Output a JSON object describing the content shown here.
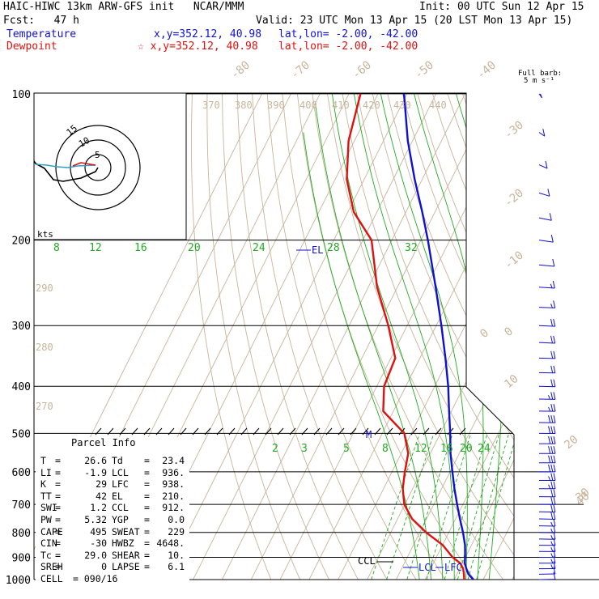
{
  "header": {
    "title": "HAIC-HIWC 13km ARW-GFS init",
    "org": "NCAR/MMM",
    "init": "Init: 00 UTC Sun 12 Apr 15",
    "fcst_label": "Fcst:",
    "fcst_value": "47 h",
    "valid": "Valid: 23 UTC Mon 13 Apr 15 (20 LST Mon 13 Apr 15)",
    "temp_label": "Temperature",
    "temp_xy": "x,y=352.12, 40.98",
    "temp_latlon": "lat,lon= -2.00, -42.00",
    "dew_label": "Dewpoint",
    "dew_star": "☆",
    "dew_xy": "x,y=352.12, 40.98",
    "dew_latlon": "lat,lon= -2.00, -42.00"
  },
  "barb_legend": {
    "line1": "Full barb:",
    "line2": "5 m s⁻¹"
  },
  "hodograph": {
    "units": "kts",
    "ring_labels": [
      "5",
      "10",
      "15"
    ]
  },
  "parcel_info": {
    "title": "Parcel Info",
    "rows": [
      [
        "T",
        "26.6",
        "Td",
        "23.4"
      ],
      [
        "LI",
        "-1.9",
        "LCL",
        "936."
      ],
      [
        "K",
        "29",
        "LFC",
        "938."
      ],
      [
        "TT",
        "42",
        "EL",
        "210."
      ],
      [
        "SWI",
        "1.2",
        "CCL",
        "912."
      ],
      [
        "PW",
        "5.32",
        "YGP",
        "0.0"
      ],
      [
        "CAPE",
        "495",
        "SWEAT",
        "229"
      ],
      [
        "CIN",
        "-30",
        "HWBZ",
        "4648."
      ],
      [
        "Tc",
        "29.0",
        "SHEAR",
        "10."
      ],
      [
        "SREH",
        "0",
        "LAPSE",
        "6.1"
      ]
    ],
    "cell_label": "CELL",
    "cell_value": "090/16"
  },
  "colors": {
    "temperature": "#1010d0",
    "dewpoint": "#e01010",
    "isotherm": "#c8b49a",
    "dry_adiabat": "#c8b49a",
    "moist_adiabat": "#22aa22",
    "mixing_ratio": "#22aa22",
    "isobar": "#000000",
    "wind_barb": "#1010d0"
  },
  "chart_data": {
    "type": "line",
    "subtype": "skew-t log-p",
    "pressure_levels": [
      "100",
      "200",
      "300",
      "400",
      "500",
      "600",
      "700",
      "800",
      "900",
      "1000"
    ],
    "isotherm_labels": [
      "-80",
      "-70",
      "-60",
      "-50",
      "-40",
      "-30",
      "-20",
      "-10",
      "0",
      "10",
      "20",
      "30",
      "40"
    ],
    "theta_labels": [
      "370",
      "380",
      "390",
      "400",
      "410",
      "420",
      "430",
      "440",
      "290",
      "280",
      "270"
    ],
    "moist_labels": [
      "8",
      "12",
      "16",
      "20",
      "24",
      "28",
      "32"
    ],
    "mixing_ratio_labels": [
      "2",
      "3",
      "5",
      "8",
      "12",
      "16",
      "20",
      "24"
    ],
    "level_labels": {
      "el": "EL",
      "m": "M",
      "ccl": "CCL",
      "lcl": "LCL",
      "lfc": "LFC"
    },
    "series": [
      {
        "name": "Temperature",
        "p": [
          1000,
          975,
          950,
          925,
          900,
          850,
          800,
          750,
          700,
          650,
          600,
          550,
          500,
          450,
          400,
          350,
          300,
          250,
          200,
          175,
          150,
          125,
          100
        ],
        "t": [
          26.6,
          24.0,
          22.3,
          20.8,
          19.9,
          17.8,
          14.9,
          11.5,
          8.0,
          4.4,
          0.8,
          -3.0,
          -6.6,
          -10.8,
          -15.4,
          -21.2,
          -28.2,
          -36.8,
          -47.6,
          -54.4,
          -62.6,
          -71.6,
          -81.0
        ]
      },
      {
        "name": "Dewpoint",
        "p": [
          1000,
          975,
          950,
          925,
          900,
          850,
          800,
          750,
          700,
          650,
          600,
          550,
          500,
          450,
          400,
          350,
          300,
          250,
          200,
          175,
          150,
          125,
          100
        ],
        "t": [
          23.4,
          22.4,
          21.2,
          19.2,
          15.6,
          10.2,
          2.2,
          -5.0,
          -10.2,
          -13.4,
          -15.6,
          -17.6,
          -22.4,
          -33.5,
          -37.5,
          -38.5,
          -46.5,
          -57.0,
          -67.0,
          -78.0,
          -86.0,
          -92.0,
          -96.0
        ]
      }
    ],
    "wind_profile": {
      "p": [
        1000,
        975,
        950,
        925,
        900,
        875,
        850,
        825,
        800,
        775,
        750,
        725,
        700,
        675,
        650,
        625,
        600,
        575,
        550,
        525,
        500,
        475,
        450,
        425,
        400,
        375,
        350,
        325,
        300,
        275,
        250,
        225,
        200,
        180,
        160,
        140,
        120,
        100
      ],
      "speed_ms": [
        5,
        6,
        7,
        7,
        7,
        7,
        8,
        8,
        8,
        8,
        9,
        10,
        10,
        11,
        12,
        13,
        14,
        15,
        16,
        16,
        15,
        14,
        13,
        12,
        11,
        11,
        11,
        10,
        9,
        8,
        7,
        6,
        5,
        4,
        6,
        5,
        4,
        3
      ],
      "dir_deg": [
        95,
        95,
        92,
        90,
        90,
        88,
        88,
        86,
        85,
        85,
        85,
        85,
        88,
        88,
        90,
        90,
        90,
        90,
        90,
        90,
        88,
        88,
        88,
        85,
        85,
        85,
        85,
        80,
        80,
        80,
        75,
        70,
        60,
        50,
        40,
        30,
        20,
        10
      ]
    }
  }
}
